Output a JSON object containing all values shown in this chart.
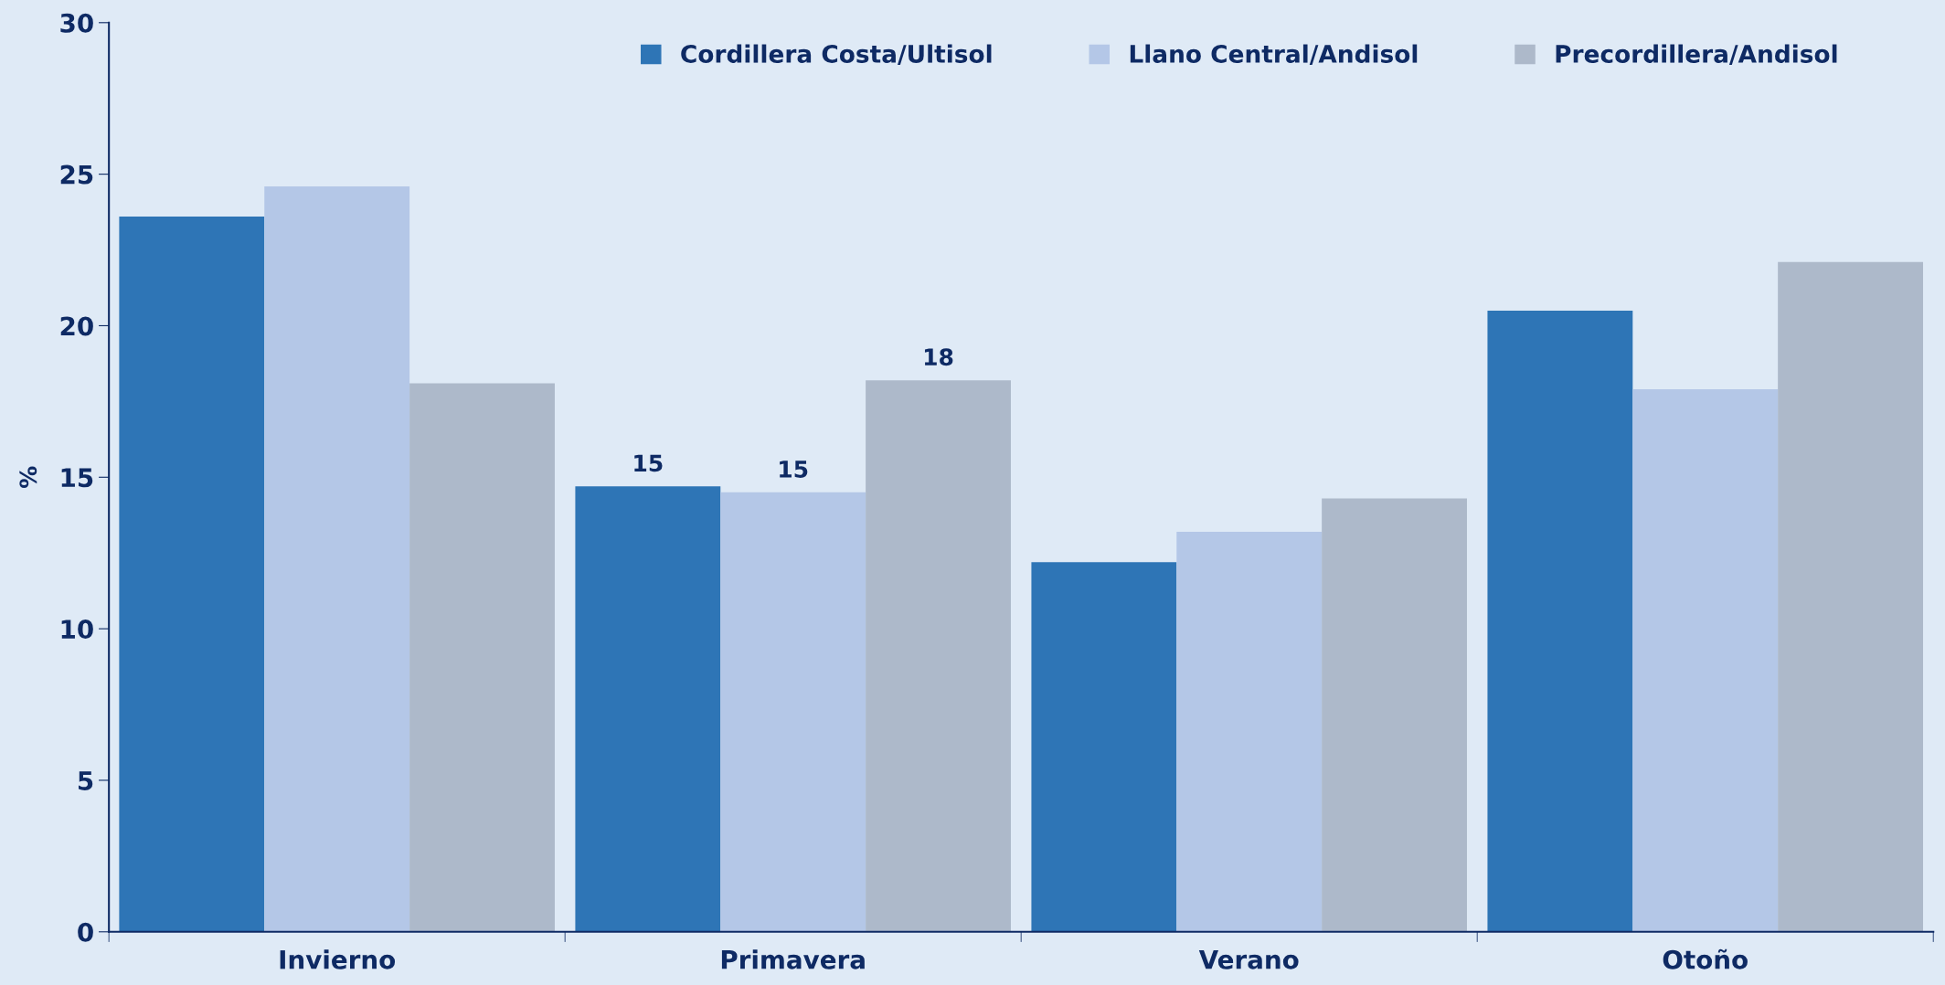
{
  "chart_data": {
    "type": "bar",
    "ylabel": "%",
    "categories": [
      "Invierno",
      "Primavera",
      "Verano",
      "Otoño"
    ],
    "series": [
      {
        "name": "Cordillera Costa/Ultisol",
        "color": "#2e75b6",
        "values": [
          23.6,
          14.7,
          12.2,
          20.5
        ],
        "value_labels": [
          null,
          "15",
          null,
          null
        ]
      },
      {
        "name": "Llano Central/Andisol",
        "color": "#b4c7e7",
        "values": [
          24.6,
          14.5,
          13.2,
          17.9
        ],
        "value_labels": [
          null,
          "15",
          null,
          null
        ]
      },
      {
        "name": "Precordillera/Andisol",
        "color": "#adb9ca",
        "values": [
          18.1,
          18.2,
          14.3,
          22.1
        ],
        "value_labels": [
          null,
          "18",
          null,
          null
        ]
      }
    ],
    "ylim": [
      0,
      30
    ],
    "yticks": [
      0,
      5,
      10,
      15,
      20,
      25,
      30
    ],
    "grid": false,
    "legend": "top right"
  }
}
